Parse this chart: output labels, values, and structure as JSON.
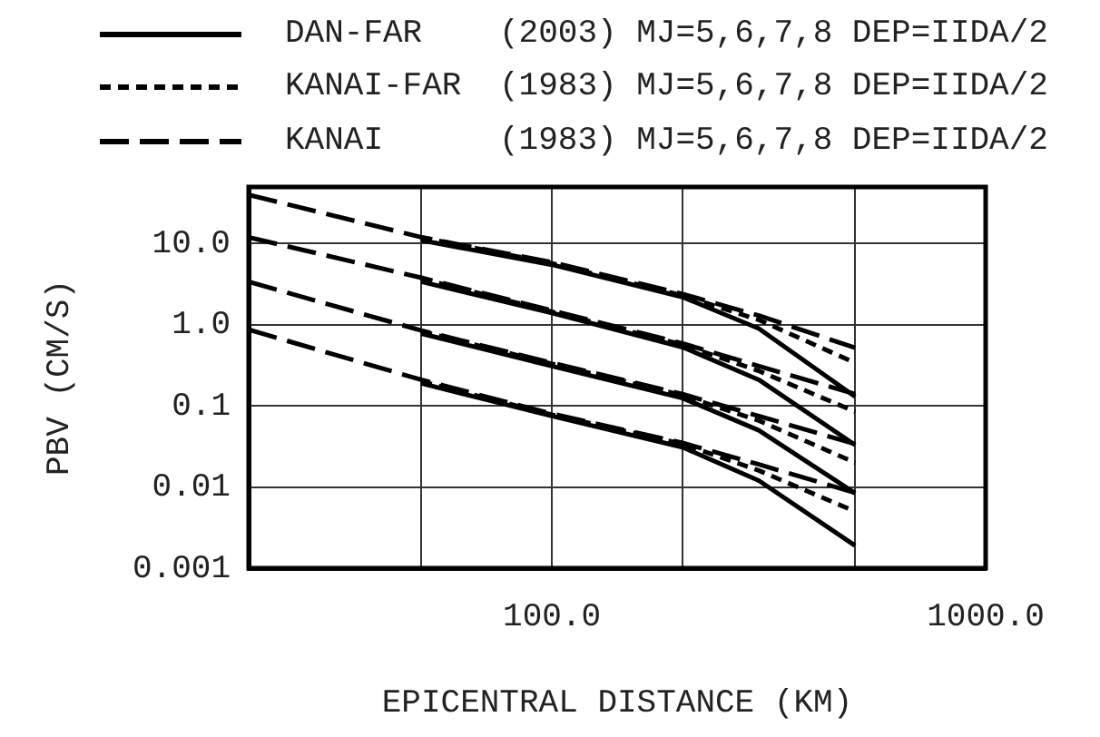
{
  "chart_data": {
    "type": "line",
    "xlabel": "EPICENTRAL DISTANCE (KM)",
    "ylabel": "PBV (CM/S)",
    "log": "xy",
    "grid": true,
    "legend": "top",
    "xlim": [
      20,
      1000
    ],
    "ylim": [
      0.001,
      50
    ],
    "xticks": [
      {
        "value": 50,
        "label": null
      },
      {
        "value": 100,
        "label": "100.0"
      },
      {
        "value": 200,
        "label": null
      },
      {
        "value": 500,
        "label": null
      },
      {
        "value": 1000,
        "label": "1000.0"
      }
    ],
    "yticks": [
      0.001,
      0.01,
      0.1,
      {
        "value": 1,
        "label": "1.0"
      },
      {
        "value": 10,
        "label": "10.0"
      }
    ],
    "series": [
      {
        "name": "DAN-FAR (2003) MJ=5,6,7,8 DEP=IIDA/2",
        "color": "#000000",
        "line_style": "solid",
        "x": [
          50,
          100,
          200,
          300,
          500
        ],
        "values": [
          11,
          5.5,
          2.2,
          0.9,
          0.13
        ]
      },
      {
        "name": "KANAI-FAR (1983) MJ=5,6,7,8 DEP=IIDA/2",
        "color": "#000000",
        "line_style": "dotted",
        "x": [
          50,
          100,
          200,
          300,
          500
        ],
        "values": [
          12,
          5.7,
          2.3,
          1.15,
          0.34
        ]
      },
      {
        "name": "KANAI (1983) MJ=5,6,7,8 DEP=IIDA/2",
        "color": "#000000",
        "line_style": "dashed",
        "x": [
          20,
          50,
          100,
          200,
          300,
          500
        ],
        "values": [
          40,
          12,
          5.9,
          2.4,
          1.3,
          0.52
        ]
      },
      {
        "color": "#000000",
        "line_style": "solid",
        "x": [
          50,
          100,
          200,
          300,
          500
        ],
        "values": [
          3.4,
          1.4,
          0.53,
          0.21,
          0.033
        ]
      },
      {
        "color": "#000000",
        "line_style": "dotted",
        "x": [
          50,
          100,
          200,
          300,
          500
        ],
        "values": [
          3.7,
          1.45,
          0.57,
          0.27,
          0.085
        ]
      },
      {
        "color": "#000000",
        "line_style": "dashed",
        "x": [
          20,
          50,
          100,
          200,
          300,
          500
        ],
        "values": [
          12,
          3.8,
          1.5,
          0.59,
          0.31,
          0.14
        ]
      },
      {
        "color": "#000000",
        "line_style": "solid",
        "x": [
          50,
          100,
          200,
          300,
          500
        ],
        "values": [
          0.78,
          0.31,
          0.125,
          0.05,
          0.0084
        ]
      },
      {
        "color": "#000000",
        "line_style": "dotted",
        "x": [
          50,
          100,
          200,
          300,
          500
        ],
        "values": [
          0.83,
          0.33,
          0.135,
          0.066,
          0.02
        ]
      },
      {
        "color": "#000000",
        "line_style": "dashed",
        "x": [
          20,
          50,
          100,
          200,
          300,
          500
        ],
        "values": [
          3.4,
          0.85,
          0.34,
          0.14,
          0.075,
          0.034
        ]
      },
      {
        "color": "#000000",
        "line_style": "solid",
        "x": [
          50,
          100,
          200,
          300,
          500
        ],
        "values": [
          0.19,
          0.075,
          0.031,
          0.012,
          0.0019
        ]
      },
      {
        "color": "#000000",
        "line_style": "dotted",
        "x": [
          50,
          100,
          200,
          300,
          500
        ],
        "values": [
          0.2,
          0.078,
          0.034,
          0.016,
          0.005
        ]
      },
      {
        "color": "#000000",
        "line_style": "dashed",
        "x": [
          20,
          50,
          100,
          200,
          300,
          500
        ],
        "values": [
          0.87,
          0.21,
          0.08,
          0.035,
          0.019,
          0.0085
        ]
      }
    ]
  }
}
